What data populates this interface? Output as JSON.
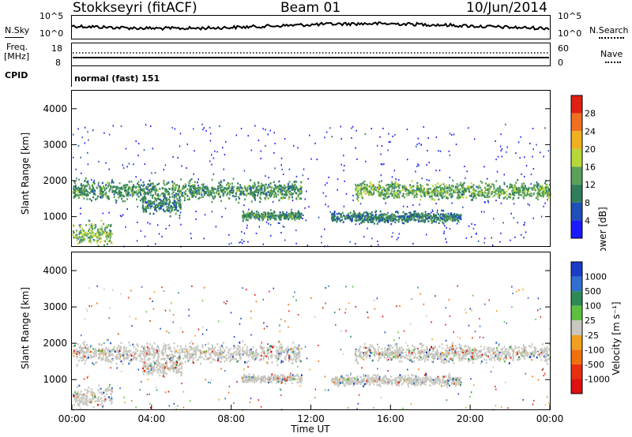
{
  "header": {
    "station": "Stokkseyri (fitACF)",
    "beam": "Beam 01",
    "date": "10/Jun/2014"
  },
  "noise_panel": {
    "left_label": "N.Sky",
    "right_label": "N.Search",
    "left_ticks": [
      "10^5",
      "10^0"
    ],
    "right_ticks": [
      "10^5",
      "10^0"
    ]
  },
  "freq_panel": {
    "left_label_1": "Freq.",
    "left_label_2": "[MHz]",
    "left_ticks": [
      "18",
      "8"
    ],
    "right_label": "Nave",
    "right_ticks": [
      "60",
      "0"
    ]
  },
  "cpid": {
    "label": "CPID",
    "program": "normal (fast) 151"
  },
  "chart_data": [
    {
      "type": "heatmap",
      "ylabel": "Slant Range [km]",
      "xlabel": "",
      "ylim": [
        180,
        4500
      ],
      "y_ticks": [
        1000,
        2000,
        3000,
        4000
      ],
      "x_ticks": [
        "00:00",
        "04:00",
        "08:00",
        "12:00",
        "16:00",
        "20:00",
        "00:00"
      ],
      "colorbar": {
        "label": "Power [dB]",
        "ticks": [
          4,
          8,
          12,
          16,
          20,
          24,
          28
        ],
        "colors": [
          "#1a1aff",
          "#1f4fb8",
          "#2e7d5b",
          "#5aa05a",
          "#b8d83a",
          "#f0b020",
          "#f07020",
          "#e02010"
        ]
      },
      "bands": [
        {
          "t_start": 0.0,
          "t_end": 11.5,
          "range_center": 1750,
          "range_width": 450,
          "intensity": 14
        },
        {
          "t_start": 14.2,
          "t_end": 24.0,
          "range_center": 1750,
          "range_width": 400,
          "intensity": 16
        },
        {
          "t_start": 8.5,
          "t_end": 11.5,
          "range_center": 1050,
          "range_width": 200,
          "intensity": 14
        },
        {
          "t_start": 13.0,
          "t_end": 19.5,
          "range_center": 1000,
          "range_width": 250,
          "intensity": 12
        },
        {
          "t_start": 0.0,
          "t_end": 2.0,
          "range_center": 550,
          "range_width": 500,
          "intensity": 18
        },
        {
          "t_start": 3.5,
          "t_end": 5.5,
          "range_center": 1350,
          "range_width": 400,
          "intensity": 12
        }
      ]
    },
    {
      "type": "heatmap",
      "ylabel": "Slant Range [km]",
      "xlabel": "Time UT",
      "ylim": [
        180,
        4500
      ],
      "y_ticks": [
        1000,
        2000,
        3000,
        4000
      ],
      "x_ticks": [
        "00:00",
        "04:00",
        "08:00",
        "12:00",
        "16:00",
        "20:00",
        "00:00"
      ],
      "colorbar": {
        "label": "Velocity [m s⁻¹]",
        "ticks": [
          1000,
          500,
          100,
          25,
          -25,
          -100,
          -500,
          -1000
        ],
        "colors": [
          "#1a3cc8",
          "#2f6fd0",
          "#2e8a55",
          "#5cc040",
          "#c8c8c0",
          "#f0a020",
          "#f07010",
          "#e83010",
          "#e01010"
        ]
      },
      "groundscatter_color": "#c8c8c0"
    }
  ]
}
